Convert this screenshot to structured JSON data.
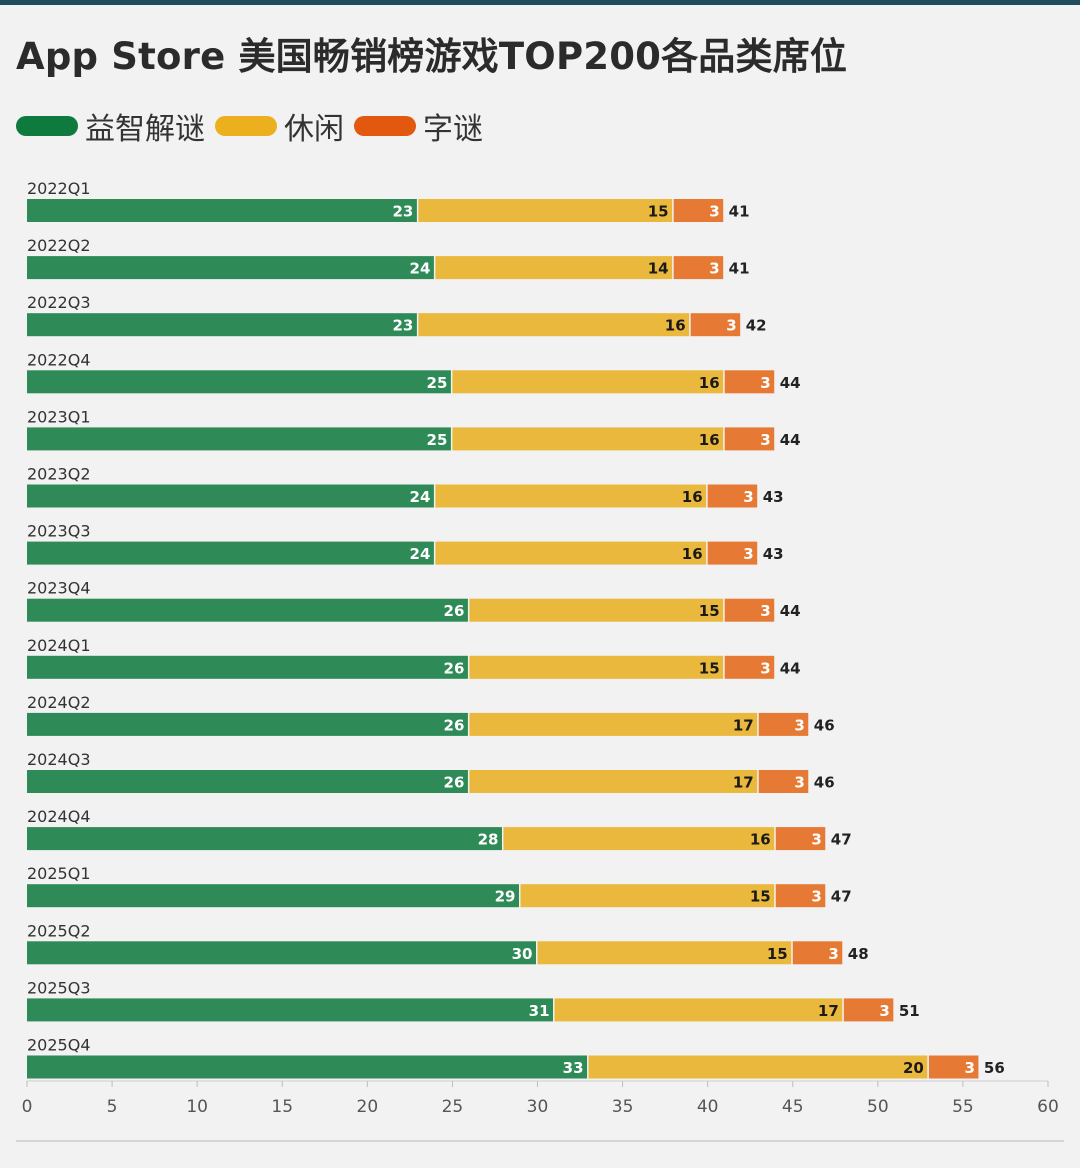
{
  "title": "App Store 美国畅销榜游戏TOP200各品类席位",
  "legend": [
    {
      "label": "益智解谜",
      "color": "#0e7a3d"
    },
    {
      "label": "休闲",
      "color": "#ecb01e"
    },
    {
      "label": "字谜",
      "color": "#e2580f"
    }
  ],
  "chart_data": {
    "type": "bar",
    "orientation": "horizontal",
    "stacked": true,
    "title": "App Store 美国畅销榜游戏TOP200各品类席位",
    "xlabel": "",
    "ylabel": "",
    "xlim": [
      0,
      60
    ],
    "x_ticks": [
      0,
      5,
      10,
      15,
      20,
      25,
      30,
      35,
      40,
      45,
      50,
      55,
      60
    ],
    "categories": [
      "2022Q1",
      "2022Q2",
      "2022Q3",
      "2022Q4",
      "2023Q1",
      "2023Q2",
      "2023Q3",
      "2023Q4",
      "2024Q1",
      "2024Q2",
      "2024Q3",
      "2024Q4",
      "2025Q1",
      "2025Q2",
      "2025Q3",
      "2025Q4"
    ],
    "series": [
      {
        "name": "益智解谜",
        "color": "#2e8b57",
        "values": [
          23,
          24,
          23,
          25,
          25,
          24,
          24,
          26,
          26,
          26,
          26,
          28,
          29,
          30,
          31,
          33
        ]
      },
      {
        "name": "休闲",
        "color": "#e9b83d",
        "values": [
          15,
          14,
          16,
          16,
          16,
          16,
          16,
          15,
          15,
          17,
          17,
          16,
          15,
          15,
          17,
          20
        ]
      },
      {
        "name": "字谜",
        "color": "#e67a35",
        "values": [
          3,
          3,
          3,
          3,
          3,
          3,
          3,
          3,
          3,
          3,
          3,
          3,
          3,
          3,
          3,
          3
        ]
      }
    ],
    "totals": [
      41,
      41,
      42,
      44,
      44,
      43,
      43,
      44,
      44,
      46,
      46,
      47,
      47,
      48,
      51,
      56
    ],
    "legend_position": "top-left",
    "grid": false
  }
}
